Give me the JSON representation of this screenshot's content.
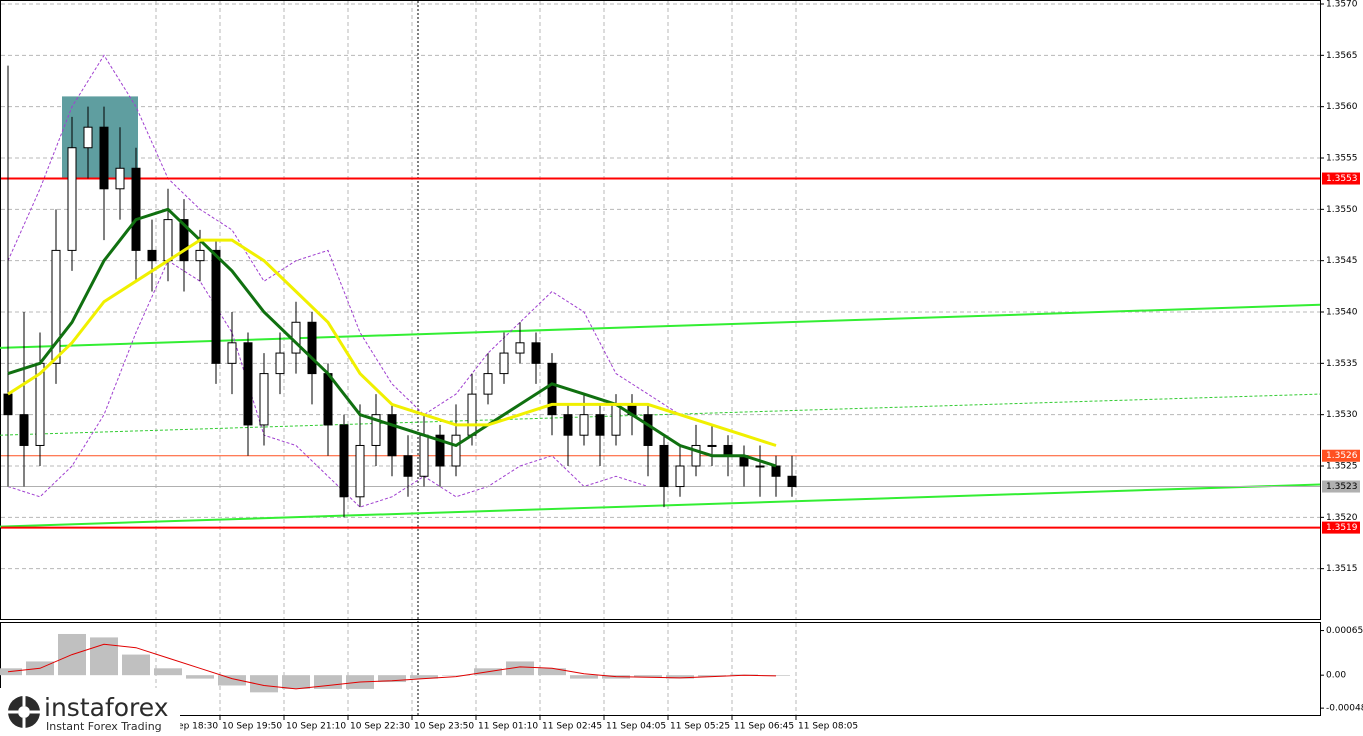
{
  "chart_data": [
    {
      "type": "candlestick",
      "x": [
        0,
        4,
        8,
        12,
        16,
        20,
        24,
        28,
        32,
        36,
        40,
        44,
        48,
        52,
        56,
        60,
        64,
        68,
        72,
        76,
        80,
        84,
        88,
        92,
        96,
        100,
        104,
        108,
        112,
        116,
        120,
        124,
        128,
        132,
        136,
        140,
        144,
        148,
        152,
        156,
        160,
        164,
        168,
        172,
        176,
        180,
        184,
        188,
        192,
        196
      ],
      "open": [
        1.3532,
        1.353,
        1.3527,
        1.3535,
        1.3546,
        1.3556,
        1.3558,
        1.3552,
        1.3554,
        1.3546,
        1.3545,
        1.3549,
        1.3545,
        1.3546,
        1.3535,
        1.3537,
        1.3529,
        1.3534,
        1.3536,
        1.3539,
        1.3534,
        1.3529,
        1.3522,
        1.3527,
        1.353,
        1.3526,
        1.3524,
        1.3528,
        1.3525,
        1.3528,
        1.3532,
        1.3534,
        1.3536,
        1.3537,
        1.3535,
        1.353,
        1.3528,
        1.353,
        1.3528,
        1.3531,
        1.353,
        1.3527,
        1.3523,
        1.3525,
        1.3527,
        1.3527,
        1.3526,
        1.3525,
        1.3525,
        1.3524
      ],
      "high": [
        1.3564,
        1.354,
        1.3538,
        1.355,
        1.3559,
        1.356,
        1.356,
        1.3558,
        1.3556,
        1.3549,
        1.3552,
        1.3551,
        1.3548,
        1.3547,
        1.354,
        1.3538,
        1.3536,
        1.3538,
        1.3541,
        1.354,
        1.3535,
        1.353,
        1.3531,
        1.3532,
        1.3531,
        1.3528,
        1.353,
        1.3529,
        1.3531,
        1.3534,
        1.3536,
        1.3538,
        1.3539,
        1.3538,
        1.3536,
        1.3531,
        1.3532,
        1.3531,
        1.3532,
        1.3532,
        1.3531,
        1.3528,
        1.3527,
        1.3529,
        1.3529,
        1.3528,
        1.3527,
        1.3527,
        1.3526,
        1.3526
      ],
      "low": [
        1.3523,
        1.3523,
        1.3525,
        1.3533,
        1.3544,
        1.3553,
        1.3547,
        1.3549,
        1.3543,
        1.3542,
        1.3543,
        1.3542,
        1.3543,
        1.3533,
        1.3532,
        1.3526,
        1.3527,
        1.3532,
        1.3534,
        1.3531,
        1.3526,
        1.352,
        1.3521,
        1.3525,
        1.3524,
        1.3522,
        1.3523,
        1.3523,
        1.3524,
        1.3527,
        1.3531,
        1.3533,
        1.3535,
        1.3533,
        1.3528,
        1.3525,
        1.3527,
        1.3525,
        1.3527,
        1.3528,
        1.3524,
        1.3521,
        1.3522,
        1.3524,
        1.3525,
        1.3524,
        1.3523,
        1.3522,
        1.3522,
        1.3522
      ],
      "close": [
        1.353,
        1.3527,
        1.3535,
        1.3546,
        1.3556,
        1.3558,
        1.3552,
        1.3554,
        1.3546,
        1.3545,
        1.3549,
        1.3545,
        1.3546,
        1.3535,
        1.3537,
        1.3529,
        1.3534,
        1.3536,
        1.3539,
        1.3534,
        1.3529,
        1.3522,
        1.3527,
        1.353,
        1.3526,
        1.3524,
        1.3528,
        1.3525,
        1.3528,
        1.3532,
        1.3534,
        1.3536,
        1.3537,
        1.3535,
        1.353,
        1.3528,
        1.353,
        1.3528,
        1.3531,
        1.353,
        1.3527,
        1.3523,
        1.3525,
        1.3527,
        1.3527,
        1.3526,
        1.3525,
        1.3525,
        1.3524,
        1.3523
      ],
      "up_color": "#ffffff",
      "down_color": "#000000",
      "xlim": [
        -2,
        328
      ],
      "xticks": [
        {
          "value": 37,
          "label": "10 Sep 18:30"
        },
        {
          "value": 53,
          "label": "10 Sep 19:50"
        },
        {
          "value": 69,
          "label": "10 Sep 21:10"
        },
        {
          "value": 85,
          "label": "10 Sep 22:30"
        },
        {
          "value": 101,
          "label": "10 Sep 23:50"
        },
        {
          "value": 117,
          "label": "11 Sep 01:10"
        },
        {
          "value": 133,
          "label": "11 Sep 02:45"
        },
        {
          "value": 149,
          "label": "11 Sep 04:05"
        },
        {
          "value": 165,
          "label": "11 Sep 05:25"
        },
        {
          "value": 181,
          "label": "11 Sep 06:45"
        },
        {
          "value": 197,
          "label": "11 Sep 08:05"
        }
      ],
      "ylim": [
        1.351,
        1.357
      ],
      "yticks": [
        1.3515,
        {
          "value": 1.352,
          "label": "1.3520"
        },
        1.3525,
        {
          "value": 1.353,
          "label": "1.3530"
        },
        1.3535,
        {
          "value": 1.354,
          "label": "1.3540"
        },
        1.3545,
        {
          "value": 1.355,
          "label": "1.3550"
        },
        1.3555,
        {
          "value": 1.356,
          "label": "1.3560"
        },
        1.3565,
        {
          "value": 1.357,
          "label": "1.3570"
        }
      ],
      "grid": true,
      "ma_x": [
        0,
        8,
        16,
        24,
        32,
        40,
        48,
        56,
        64,
        72,
        80,
        88,
        96,
        104,
        112,
        120,
        128,
        136,
        144,
        152,
        160,
        168,
        176,
        184,
        192
      ],
      "moving_averages": [
        {
          "color": "#107010",
          "values": [
            1.3534,
            1.3535,
            1.3539,
            1.3545,
            1.3549,
            1.355,
            1.3547,
            1.3544,
            1.354,
            1.3537,
            1.3534,
            1.353,
            1.3529,
            1.3528,
            1.3527,
            1.3529,
            1.3531,
            1.3533,
            1.3532,
            1.3531,
            1.3529,
            1.3527,
            1.3526,
            1.3526,
            1.3525
          ]
        },
        {
          "color": "#f0f000",
          "values": [
            1.3532,
            1.3534,
            1.3537,
            1.3541,
            1.3543,
            1.3545,
            1.3547,
            1.3547,
            1.3545,
            1.3542,
            1.3539,
            1.3534,
            1.3531,
            1.353,
            1.3529,
            1.3529,
            1.353,
            1.3531,
            1.3531,
            1.3531,
            1.3531,
            1.353,
            1.3529,
            1.3528,
            1.3527
          ]
        }
      ],
      "bands": {
        "color": "#a040d0",
        "upper": [
          1.3545,
          1.3552,
          1.356,
          1.3565,
          1.356,
          1.3553,
          1.355,
          1.3548,
          1.3543,
          1.3545,
          1.3546,
          1.3538,
          1.3533,
          1.353,
          1.3532,
          1.3536,
          1.3539,
          1.3542,
          1.354,
          1.3534,
          1.3532,
          1.353,
          1.3529,
          1.3528,
          1.3527
        ],
        "lower": [
          1.3523,
          1.3522,
          1.3525,
          1.353,
          1.3538,
          1.3545,
          1.3543,
          1.3538,
          1.3528,
          1.3527,
          1.3524,
          1.3521,
          1.3522,
          1.3524,
          1.3522,
          1.3523,
          1.3525,
          1.3526,
          1.3523,
          1.3524,
          1.3523,
          1.3523,
          1.3523,
          1.3523,
          1.3523
        ]
      },
      "trendlines": [
        {
          "color": "#33ee33",
          "x": [
            -2,
            328
          ],
          "values": [
            1.35365,
            1.35407
          ]
        },
        {
          "color": "#33ee33",
          "x": [
            -2,
            328
          ],
          "values": [
            1.35191,
            1.35232
          ]
        },
        {
          "color": "#33cc33",
          "dashed": true,
          "x": [
            -2,
            328
          ],
          "values": [
            1.3528,
            1.3532
          ]
        }
      ],
      "levels": [
        {
          "value": 1.3553,
          "color": "#ff0000"
        },
        {
          "value": 1.3526,
          "color": "#ff5020"
        },
        {
          "value": 1.3523,
          "color": "#b0b0b0"
        },
        {
          "value": 1.3519,
          "color": "#ff0000"
        }
      ],
      "zone": {
        "x": [
          13.5,
          32.5
        ],
        "y": [
          1.3553,
          1.3561
        ],
        "color": "#5f9ea0"
      },
      "marker_x": 102.5
    },
    {
      "type": "bar",
      "x": [
        0,
        8,
        16,
        24,
        32,
        40,
        48,
        56,
        64,
        72,
        80,
        88,
        96,
        104,
        112,
        120,
        128,
        136,
        144,
        152,
        160,
        168,
        176,
        184,
        192
      ],
      "values": [
        0.0001,
        0.0002,
        0.0006,
        0.00055,
        0.0003,
        0.0001,
        -5e-05,
        -0.00015,
        -0.00025,
        -0.0002,
        -0.0002,
        -0.0002,
        -0.0001,
        -5e-05,
        0,
        0.0001,
        0.0002,
        0.0001,
        -5e-05,
        -5e-05,
        -3e-05,
        -5e-05,
        -2e-05,
        1e-05,
        -1e-05
      ],
      "color": "#c0c0c0",
      "signal": {
        "color": "#e00000",
        "values": [
          5e-05,
          0.0001,
          0.0003,
          0.00045,
          0.0004,
          0.00025,
          0.0001,
          -5e-05,
          -0.00015,
          -0.0002,
          -0.00015,
          -0.0001,
          -8e-05,
          -5e-05,
          -2e-05,
          5e-05,
          0.00012,
          0.0001,
          2e-05,
          -2e-05,
          -3e-05,
          -4e-05,
          -2e-05,
          0,
          -1e-05
        ]
      },
      "xlim": [
        -2,
        328
      ],
      "ylim": [
        -0.00058,
        0.00076
      ],
      "yticks": [
        0.00065,
        {
          "value": 0,
          "label": "0.00"
        },
        -0.00048
      ]
    }
  ],
  "logo": {
    "name": "instaforex",
    "tagline": "Instant Forex Trading"
  }
}
